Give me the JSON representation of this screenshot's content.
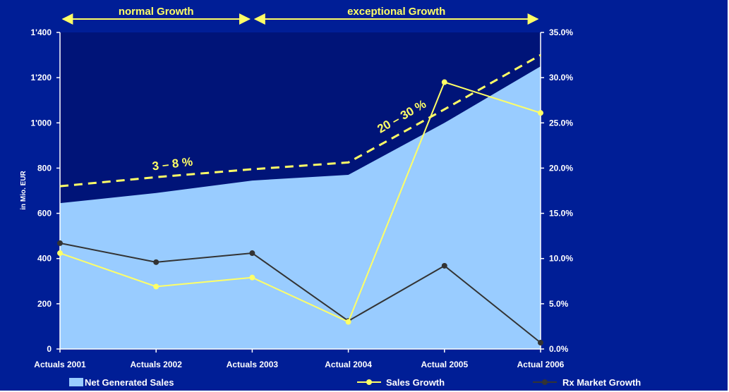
{
  "chart_data": {
    "type": "area",
    "categories": [
      "Actuals 2001",
      "Actuals 2002",
      "Actuals 2003",
      "Actual 2004",
      "Actual 2005",
      "Actual 2006"
    ],
    "ylabel": "in Mio. EUR",
    "ylim": [
      0,
      1400
    ],
    "y2lim": [
      0,
      35
    ],
    "left_ticks": [
      "0",
      "200",
      "400",
      "600",
      "800",
      "1'000",
      "1'200",
      "1'400"
    ],
    "right_ticks": [
      "0.0%",
      "5.0%",
      "10.0%",
      "15.0%",
      "20.0%",
      "25.0%",
      "30.0%",
      "35.0%"
    ],
    "series": [
      {
        "name": "Net Generated Sales",
        "type": "area",
        "axis": "left",
        "color": "#99ccff",
        "values": [
          645,
          690,
          745,
          770,
          1000,
          1250
        ]
      },
      {
        "name": "Sales Growth",
        "type": "line",
        "axis": "right",
        "color": "#ffff66",
        "values": [
          10.6,
          6.9,
          7.9,
          3.0,
          29.5,
          26.1
        ]
      },
      {
        "name": "Rx Market Growth",
        "type": "line",
        "axis": "right",
        "color": "#333333",
        "values": [
          11.7,
          9.6,
          10.6,
          3.1,
          9.2,
          0.7
        ]
      },
      {
        "type": "trend",
        "axis": "left",
        "color": "#ffff66",
        "dashed": true,
        "values": [
          720,
          760,
          795,
          825,
          1060,
          1300
        ]
      }
    ],
    "annotations": [
      {
        "text": "3 – 8 %",
        "color": "#ffff66"
      },
      {
        "text": "20 – 30 %",
        "color": "#ffff66"
      }
    ],
    "phases": [
      {
        "label": "normal Growth",
        "from": "Actuals 2001",
        "to": "Actuals 2003"
      },
      {
        "label": "exceptional Growth",
        "from": "Actuals 2003",
        "to": "Actual 2006"
      }
    ],
    "legend_position": "bottom",
    "background_color": "#001e96",
    "upper_band_color": "#001478"
  }
}
